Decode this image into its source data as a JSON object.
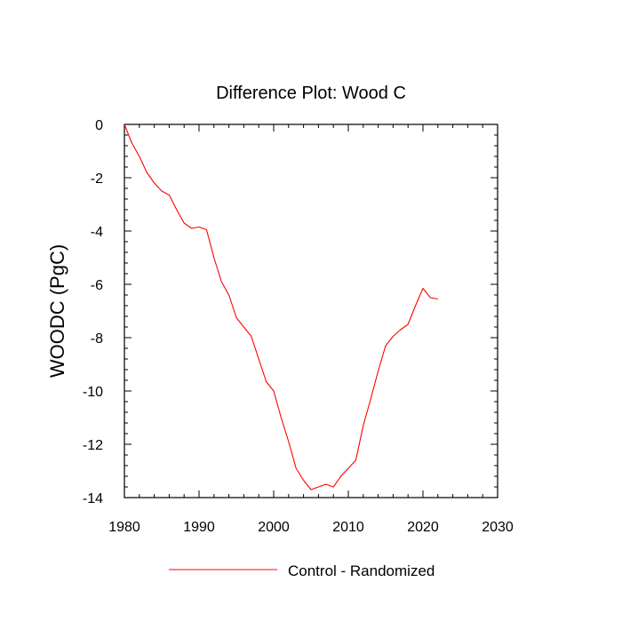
{
  "chart_data": {
    "type": "line",
    "title": "Difference Plot: Wood C",
    "xlabel": "",
    "ylabel": "WOODC  (PgC)",
    "xlim": [
      1980,
      2030
    ],
    "ylim": [
      -14,
      0
    ],
    "x_ticks": [
      1980,
      1990,
      2000,
      2010,
      2020,
      2030
    ],
    "x_tick_labels": [
      "1980",
      "1990",
      "2000",
      "2010",
      "2020",
      "2030"
    ],
    "y_ticks": [
      0,
      -2,
      -4,
      -6,
      -8,
      -10,
      -12,
      -14
    ],
    "y_tick_labels": [
      "0",
      "-2",
      "-4",
      "-6",
      "-8",
      "-10",
      "-12",
      "-14"
    ],
    "grid": false,
    "legend_position": "bottom-center",
    "series": [
      {
        "name": "Control - Randomized",
        "color": "#ff0000",
        "x": [
          1980,
          1981,
          1982,
          1983,
          1984,
          1985,
          1986,
          1987,
          1988,
          1989,
          1990,
          1991,
          1992,
          1993,
          1994,
          1995,
          1996,
          1997,
          1998,
          1999,
          2000,
          2001,
          2002,
          2003,
          2004,
          2005,
          2006,
          2007,
          2008,
          2009,
          2010,
          2011,
          2012,
          2013,
          2014,
          2015,
          2016,
          2017,
          2018,
          2019,
          2020,
          2021,
          2022
        ],
        "values": [
          0,
          -0.7,
          -1.2,
          -1.8,
          -2.2,
          -2.5,
          -2.65,
          -3.2,
          -3.7,
          -3.9,
          -3.85,
          -3.95,
          -5.0,
          -5.9,
          -6.4,
          -7.25,
          -7.6,
          -7.95,
          -8.8,
          -9.65,
          -10.0,
          -11.0,
          -11.9,
          -12.9,
          -13.35,
          -13.7,
          -13.6,
          -13.5,
          -13.6,
          -13.2,
          -12.9,
          -12.6,
          -11.3,
          -10.3,
          -9.25,
          -8.3,
          -7.95,
          -7.7,
          -7.5,
          -6.8,
          -6.15,
          -6.5,
          -6.55
        ]
      }
    ]
  }
}
